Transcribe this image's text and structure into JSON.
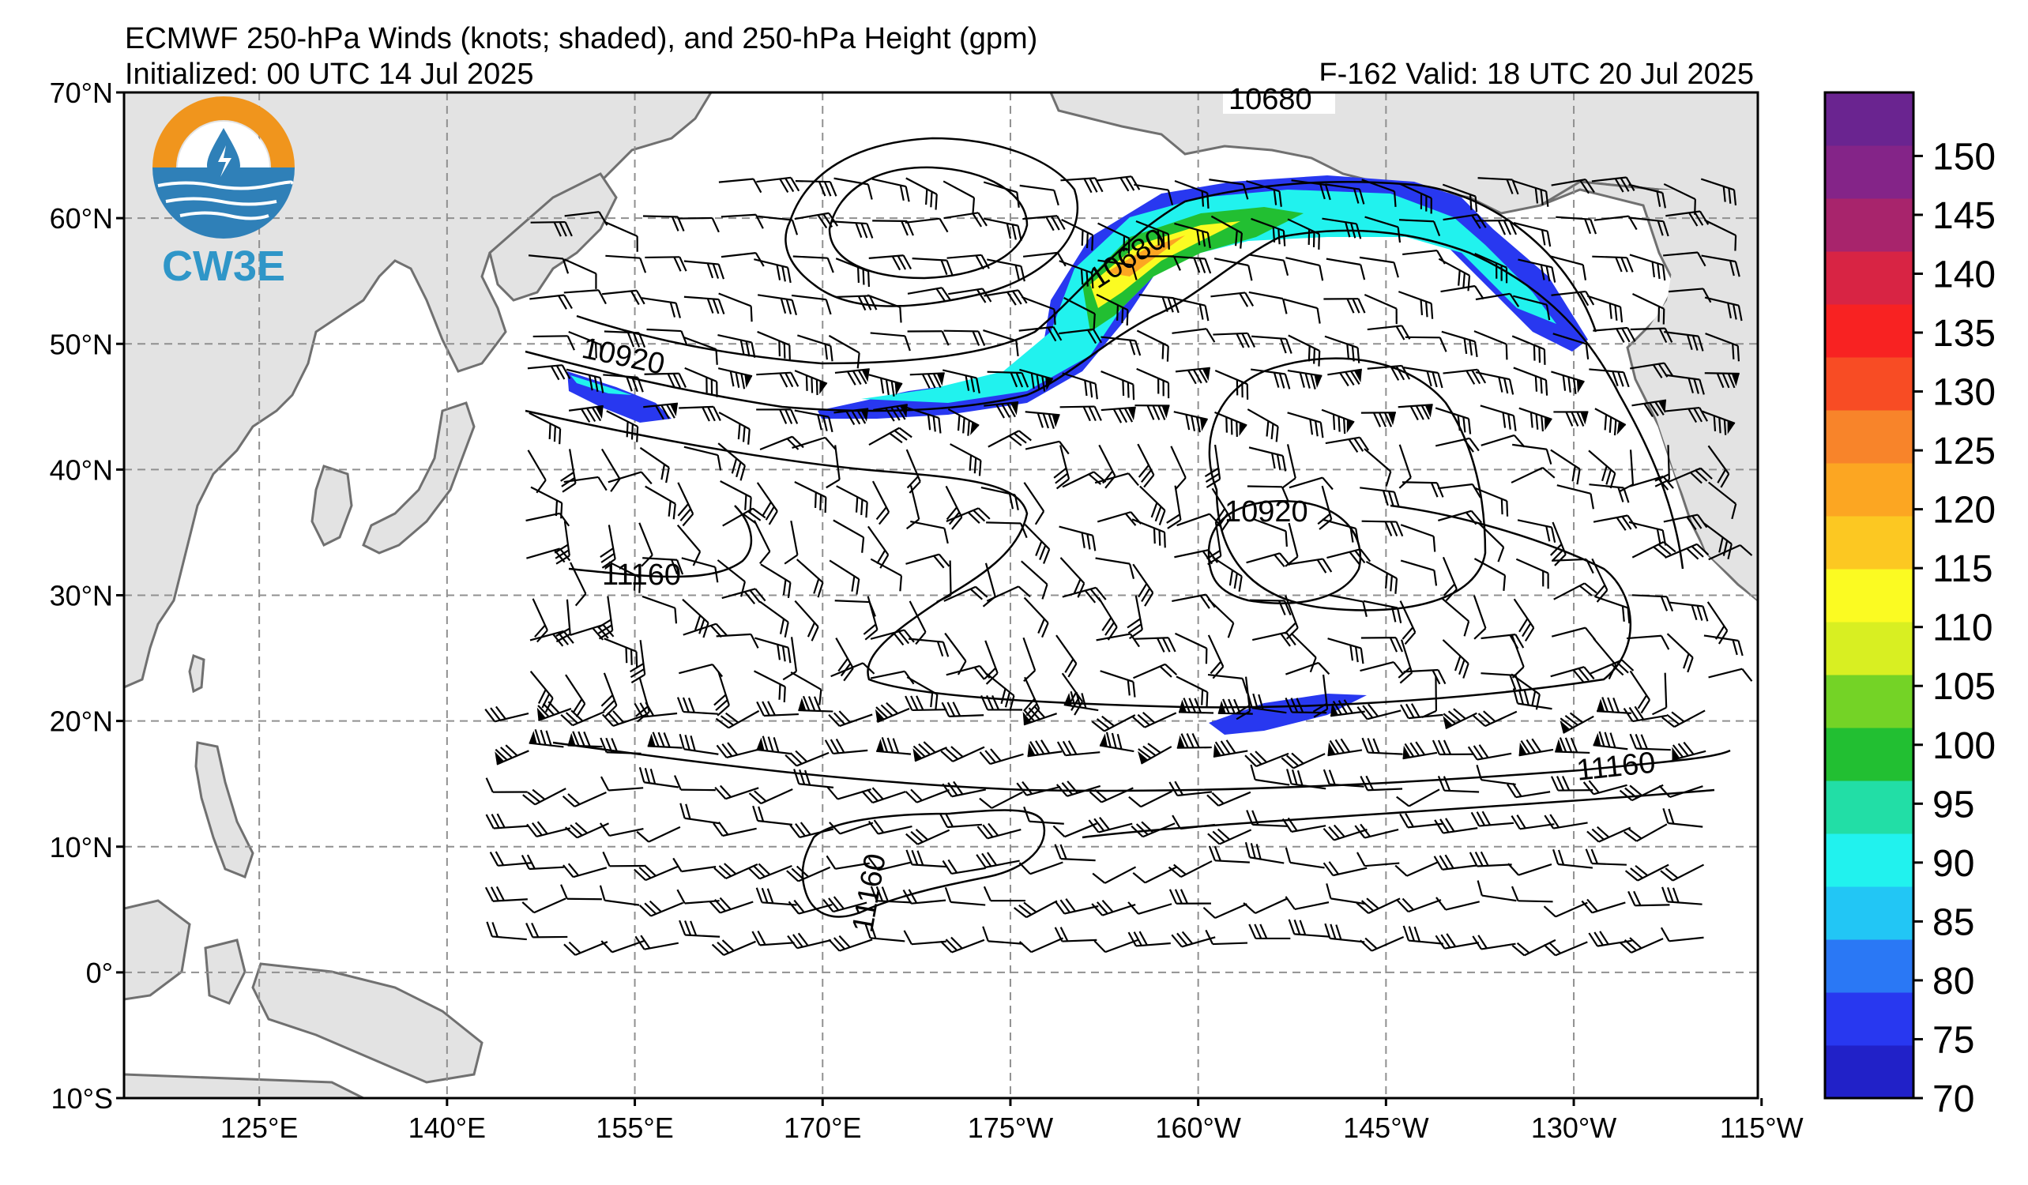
{
  "header": {
    "title": "ECMWF 250-hPa Winds (knots; shaded), and 250-hPa Height (gpm)",
    "init": "Initialized: 00 UTC 14 Jul 2025",
    "valid": "F-162  Valid: 18 UTC 20 Jul 2025"
  },
  "logo": {
    "text": "CW3E",
    "ring_color": "#f0951d",
    "blue": "#2f80b8"
  },
  "map": {
    "lat_labels": [
      "70°N",
      "60°N",
      "50°N",
      "40°N",
      "30°N",
      "20°N",
      "10°N",
      "0°",
      "10°S"
    ],
    "lon_labels": [
      "125°E",
      "140°E",
      "155°E",
      "170°E",
      "175°W",
      "160°W",
      "145°W",
      "130°W",
      "115°W"
    ],
    "contour_labels": [
      "10680",
      "10680",
      "10920",
      "10920",
      "11160",
      "11160",
      "11160"
    ]
  },
  "colorbar": {
    "ticks": [
      "70",
      "75",
      "80",
      "85",
      "90",
      "95",
      "100",
      "105",
      "110",
      "115",
      "120",
      "125",
      "130",
      "135",
      "140",
      "145",
      "150"
    ],
    "colors": [
      "#2121c8",
      "#2838f0",
      "#2a78f5",
      "#22c6f5",
      "#21f2ee",
      "#22dea6",
      "#22bf32",
      "#74d326",
      "#d8ef22",
      "#fbfb22",
      "#fcc822",
      "#fca622",
      "#f8842a",
      "#f84c24",
      "#f82222",
      "#d82444",
      "#a8246c",
      "#842488",
      "#6a2490"
    ]
  }
}
